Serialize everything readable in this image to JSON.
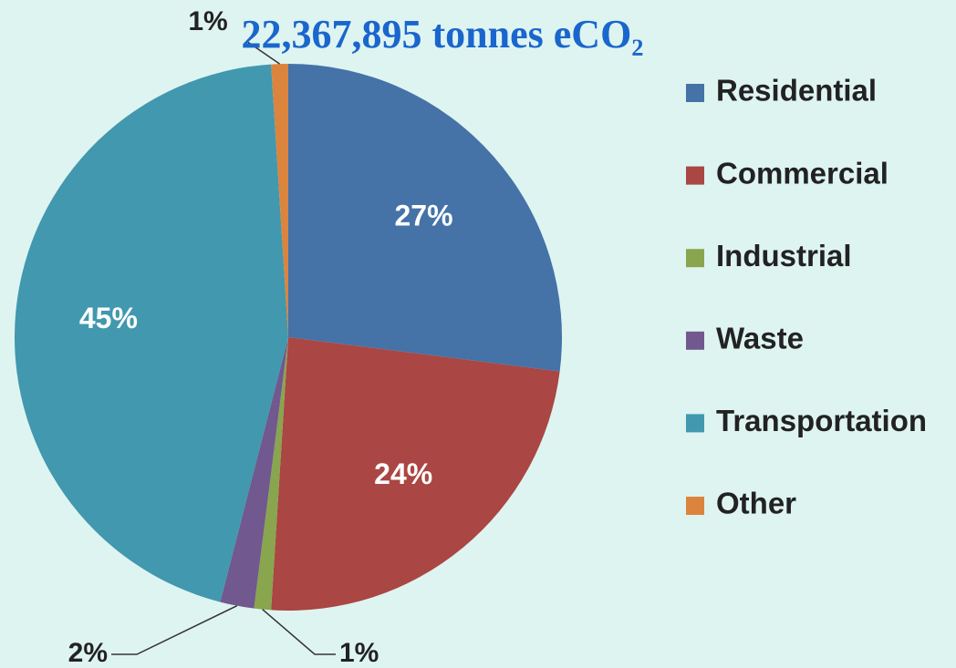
{
  "chart_data": {
    "type": "pie",
    "title": "22,367,895 tonnes eCO₂",
    "categories": [
      "Residential",
      "Commercial",
      "Industrial",
      "Waste",
      "Transportation",
      "Other"
    ],
    "values": [
      27,
      24,
      1,
      2,
      45,
      1
    ],
    "value_labels": [
      "27%",
      "24%",
      "1%",
      "2%",
      "45%",
      "1%"
    ],
    "colors": [
      "#4572a7",
      "#aa4643",
      "#89a54e",
      "#71588f",
      "#4198af",
      "#db843d"
    ],
    "legend": "right"
  }
}
